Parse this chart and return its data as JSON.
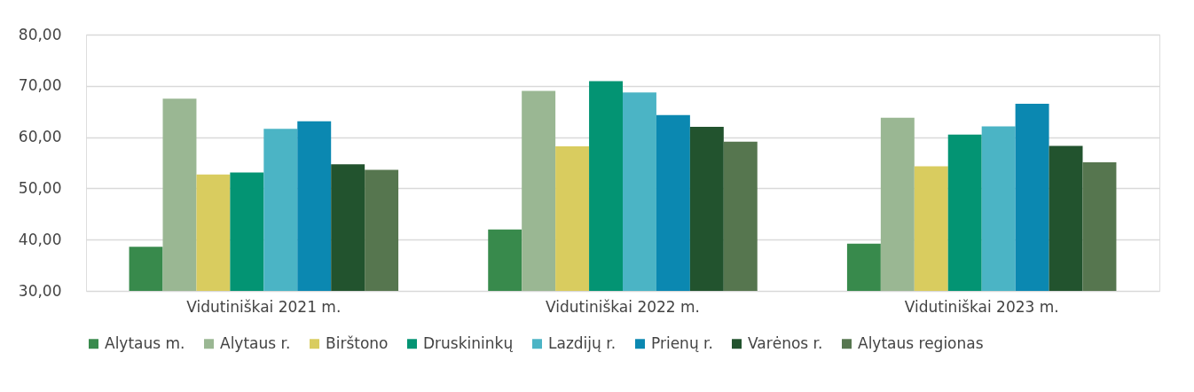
{
  "chart_data": {
    "type": "bar",
    "categories": [
      "Vidutiniškai 2021 m.",
      "Vidutiniškai 2022 m.",
      "Vidutiniškai 2023 m."
    ],
    "series": [
      {
        "name": "Alytaus m.",
        "color": "#388a4c",
        "values": [
          38.6,
          42.0,
          39.2
        ]
      },
      {
        "name": "Alytaus r.",
        "color": "#9ab793",
        "values": [
          67.5,
          69.0,
          63.8
        ]
      },
      {
        "name": "Birštono",
        "color": "#d9cc5f",
        "values": [
          52.7,
          58.2,
          54.3
        ]
      },
      {
        "name": "Druskininkų",
        "color": "#039473",
        "values": [
          53.1,
          70.9,
          60.5
        ]
      },
      {
        "name": "Lazdijų r.",
        "color": "#4bb4c5",
        "values": [
          61.6,
          68.7,
          62.1
        ]
      },
      {
        "name": "Prienų r.",
        "color": "#0b88b1",
        "values": [
          63.1,
          64.3,
          66.5
        ]
      },
      {
        "name": "Varėnos r.",
        "color": "#22532e",
        "values": [
          54.7,
          62.0,
          58.3
        ]
      },
      {
        "name": "Alytaus regionas",
        "color": "#56764f",
        "values": [
          53.6,
          59.1,
          55.1
        ]
      }
    ],
    "ylim": [
      30,
      80
    ],
    "yticks": [
      {
        "value": 30,
        "label": "30,00"
      },
      {
        "value": 40,
        "label": "40,00"
      },
      {
        "value": 50,
        "label": "50,00"
      },
      {
        "value": 60,
        "label": "60,00"
      },
      {
        "value": 70,
        "label": "70,00"
      },
      {
        "value": 80,
        "label": "80,00"
      }
    ],
    "grid": "y",
    "legend": "bottom"
  }
}
